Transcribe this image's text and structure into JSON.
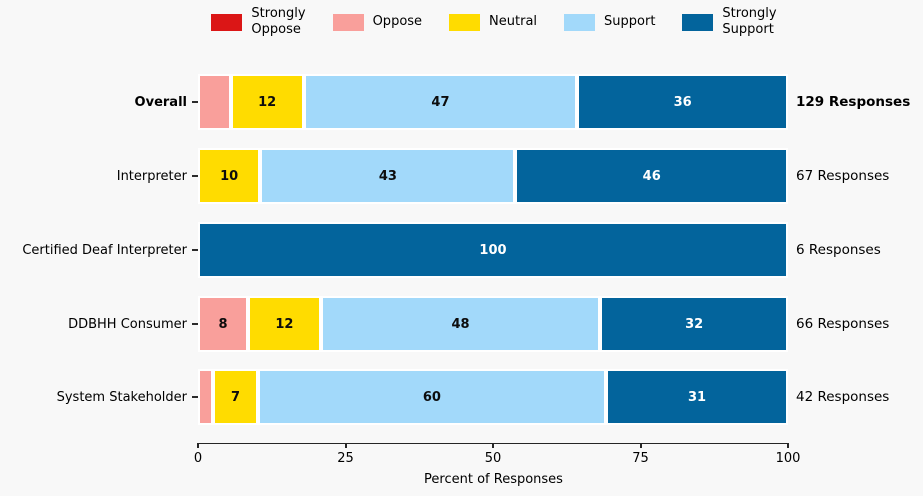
{
  "colors": {
    "background": "#f8f8f8",
    "strongly_oppose": "#db1616",
    "oppose": "#f99f9b",
    "neutral": "#ffdc00",
    "support": "#a2d9fa",
    "strongly_support": "#03649c",
    "segment_label_dark": "#0d0d0d",
    "segment_label_light": "#ffffff",
    "axis": "#262626"
  },
  "legend": {
    "items": [
      {
        "key": "strongly_oppose",
        "label": "Strongly\nOppose"
      },
      {
        "key": "oppose",
        "label": "Oppose"
      },
      {
        "key": "neutral",
        "label": "Neutral"
      },
      {
        "key": "support",
        "label": "Support"
      },
      {
        "key": "strongly_support",
        "label": "Strongly\nSupport"
      }
    ]
  },
  "chart_data": {
    "type": "bar",
    "orientation": "horizontal-stacked",
    "title": "",
    "xlabel": "Percent of Responses",
    "ylabel": "",
    "xlim": [
      0,
      100
    ],
    "xticks": [
      0,
      25,
      50,
      75,
      100
    ],
    "grid": false,
    "legend_position": "top-center",
    "categories": [
      "Overall",
      "Interpreter",
      "Certified Deaf Interpreter",
      "DDBHH Consumer",
      "System Stakeholder"
    ],
    "series": [
      {
        "name": "Strongly Oppose",
        "values": [
          0,
          0,
          0,
          0,
          0
        ]
      },
      {
        "name": "Oppose",
        "values": [
          5,
          0,
          0,
          8,
          2
        ]
      },
      {
        "name": "Neutral",
        "values": [
          12,
          10,
          0,
          12,
          7
        ]
      },
      {
        "name": "Support",
        "values": [
          47,
          43,
          0,
          48,
          60
        ]
      },
      {
        "name": "Strongly Support",
        "values": [
          36,
          46,
          100,
          32,
          31
        ]
      }
    ],
    "annotations": [
      "129 Responses",
      "67 Responses",
      "6 Responses",
      "66 Responses",
      "42 Responses"
    ]
  },
  "rows": [
    {
      "label": "Overall",
      "bold": true,
      "responses": "129 Responses",
      "segments": [
        {
          "key": "oppose",
          "value": 5,
          "label": ""
        },
        {
          "key": "neutral",
          "value": 12,
          "label": "12"
        },
        {
          "key": "support",
          "value": 47,
          "label": "47"
        },
        {
          "key": "strongly_support",
          "value": 36,
          "label": "36"
        }
      ]
    },
    {
      "label": "Interpreter",
      "bold": false,
      "responses": "67 Responses",
      "segments": [
        {
          "key": "neutral",
          "value": 10,
          "label": "10"
        },
        {
          "key": "support",
          "value": 43,
          "label": "43"
        },
        {
          "key": "strongly_support",
          "value": 46,
          "label": "46"
        }
      ]
    },
    {
      "label": "Certified Deaf Interpreter",
      "bold": false,
      "responses": "6 Responses",
      "segments": [
        {
          "key": "strongly_support",
          "value": 100,
          "label": "100"
        }
      ]
    },
    {
      "label": "DDBHH Consumer",
      "bold": false,
      "responses": "66 Responses",
      "segments": [
        {
          "key": "oppose",
          "value": 8,
          "label": "8"
        },
        {
          "key": "neutral",
          "value": 12,
          "label": "12"
        },
        {
          "key": "support",
          "value": 48,
          "label": "48"
        },
        {
          "key": "strongly_support",
          "value": 32,
          "label": "32"
        }
      ]
    },
    {
      "label": "System Stakeholder",
      "bold": false,
      "responses": "42 Responses",
      "segments": [
        {
          "key": "oppose",
          "value": 2,
          "label": ""
        },
        {
          "key": "neutral",
          "value": 7,
          "label": "7"
        },
        {
          "key": "support",
          "value": 60,
          "label": "60"
        },
        {
          "key": "strongly_support",
          "value": 31,
          "label": "31"
        }
      ]
    }
  ]
}
